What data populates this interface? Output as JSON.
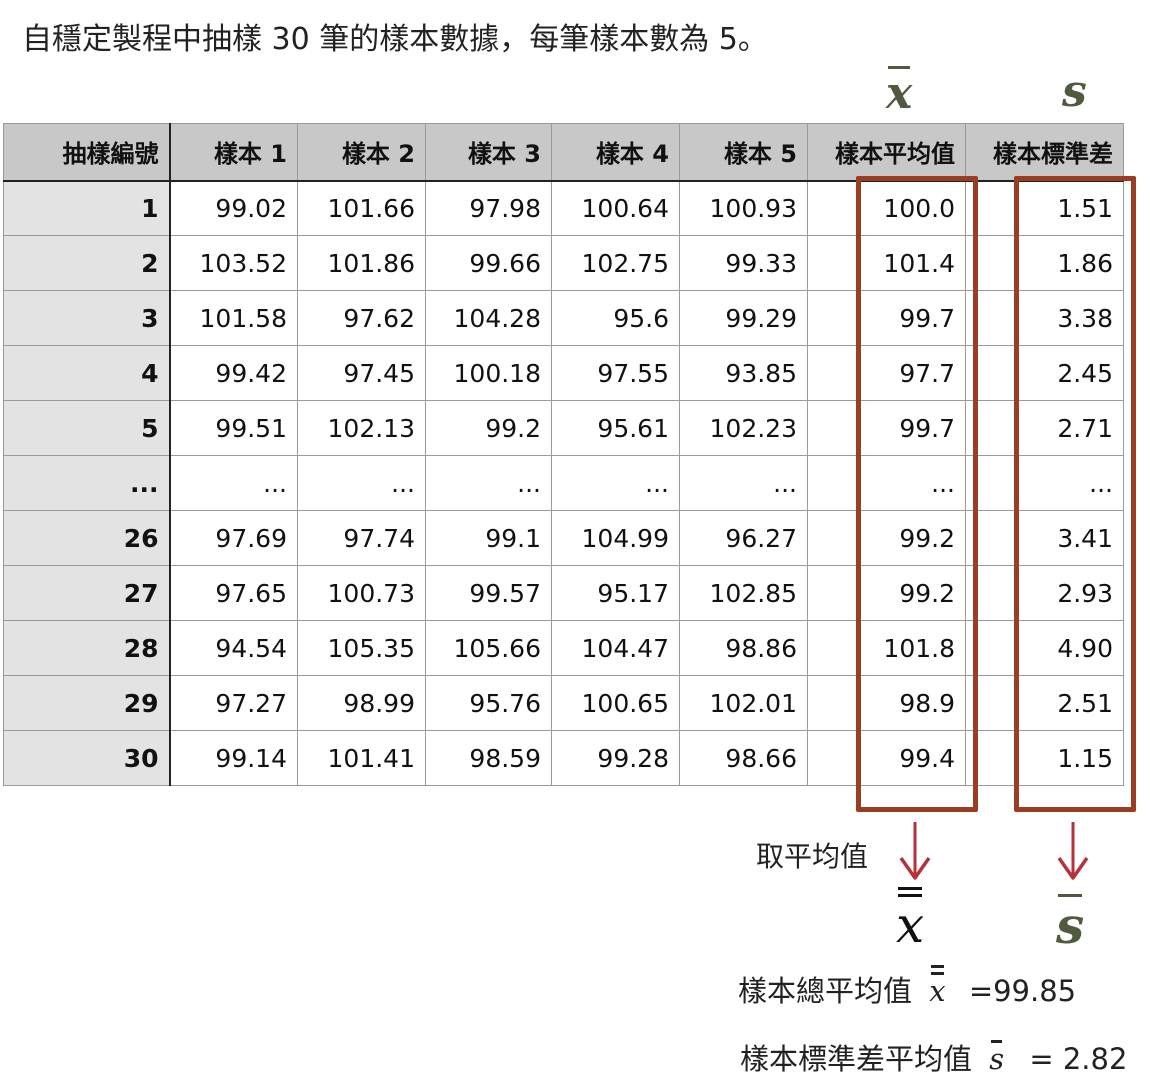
{
  "intro": "自穩定製程中抽樣 30 筆的樣本數據，每筆樣本數為 5。",
  "symbols": {
    "xbar": "x",
    "s": "s"
  },
  "table": {
    "headers": [
      "抽樣編號",
      "樣本 1",
      "樣本 2",
      "樣本 3",
      "樣本 4",
      "樣本 5",
      "樣本平均值",
      "樣本標準差"
    ],
    "rows": [
      [
        "1",
        "99.02",
        "101.66",
        "97.98",
        "100.64",
        "100.93",
        "100.0",
        "1.51"
      ],
      [
        "2",
        "103.52",
        "101.86",
        "99.66",
        "102.75",
        "99.33",
        "101.4",
        "1.86"
      ],
      [
        "3",
        "101.58",
        "97.62",
        "104.28",
        "95.6",
        "99.29",
        "99.7",
        "3.38"
      ],
      [
        "4",
        "99.42",
        "97.45",
        "100.18",
        "97.55",
        "93.85",
        "97.7",
        "2.45"
      ],
      [
        "5",
        "99.51",
        "102.13",
        "99.2",
        "95.61",
        "102.23",
        "99.7",
        "2.71"
      ],
      [
        "...",
        "...",
        "...",
        "...",
        "...",
        "...",
        "...",
        "..."
      ],
      [
        "26",
        "97.69",
        "97.74",
        "99.1",
        "104.99",
        "96.27",
        "99.2",
        "3.41"
      ],
      [
        "27",
        "97.65",
        "100.73",
        "99.57",
        "95.17",
        "102.85",
        "99.2",
        "2.93"
      ],
      [
        "28",
        "94.54",
        "105.35",
        "105.66",
        "104.47",
        "98.86",
        "101.8",
        "4.90"
      ],
      [
        "29",
        "97.27",
        "98.99",
        "95.76",
        "100.65",
        "102.01",
        "98.9",
        "2.51"
      ],
      [
        "30",
        "99.14",
        "101.41",
        "98.59",
        "99.28",
        "98.66",
        "99.4",
        "1.15"
      ]
    ]
  },
  "take_mean_label": "取平均值",
  "results": {
    "grand_mean_label": "樣本總平均值",
    "grand_mean_value": "=99.85",
    "mean_sd_label": "樣本標準差平均值",
    "mean_sd_value": "= 2.82"
  },
  "colors": {
    "highlight": "#9a3d22",
    "arrow": "#b5323a",
    "symbol": "#4f5a3e"
  }
}
